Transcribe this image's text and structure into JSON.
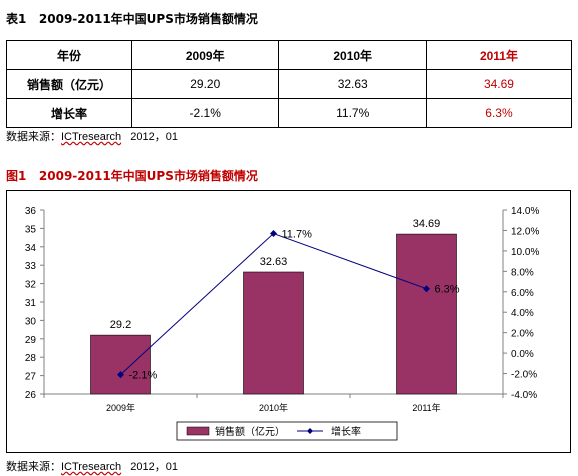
{
  "table": {
    "title_prefix": "表1",
    "title_text": "2009-2011年中国UPS市场销售额情况",
    "header": [
      "年份",
      "2009年",
      "2010年",
      "2011年"
    ],
    "rows": [
      {
        "label": "销售额（亿元）",
        "values": [
          "29.20",
          "32.63",
          "34.69"
        ]
      },
      {
        "label": "增长率",
        "values": [
          "-2.1%",
          "11.7%",
          "6.3%"
        ]
      }
    ],
    "highlight_color": "#c00000"
  },
  "source_text_prefix": "数据来源：",
  "source_text_org": "ICTresearch",
  "source_text_date": "2012，01",
  "figure": {
    "title_prefix": "图1",
    "title_text": "2009-2011年中国UPS市场销售额情况"
  },
  "chart_data": {
    "type": "bar",
    "categories": [
      "2009年",
      "2010年",
      "2011年"
    ],
    "series": [
      {
        "name": "销售额（亿元）",
        "type": "bar",
        "axis": "left",
        "values": [
          29.2,
          32.63,
          34.69
        ],
        "labels": [
          "29.2",
          "32.63",
          "34.69"
        ],
        "color": "#993366"
      },
      {
        "name": "增长率",
        "type": "line",
        "axis": "right",
        "values": [
          -2.1,
          11.7,
          6.3
        ],
        "labels": [
          "-2.1%",
          "11.7%",
          "6.3%"
        ],
        "color": "#000080"
      }
    ],
    "ylim": [
      26,
      36
    ],
    "yticks": [
      "36",
      "35",
      "34",
      "33",
      "32",
      "31",
      "30",
      "29",
      "28",
      "27",
      "26"
    ],
    "y2lim": [
      -4,
      14
    ],
    "y2ticks": [
      "14.0%",
      "12.0%",
      "10.0%",
      "8.0%",
      "6.0%",
      "4.0%",
      "2.0%",
      "0.0%",
      "-2.0%",
      "-4.0%"
    ],
    "grid": false,
    "legend_position": "bottom"
  }
}
